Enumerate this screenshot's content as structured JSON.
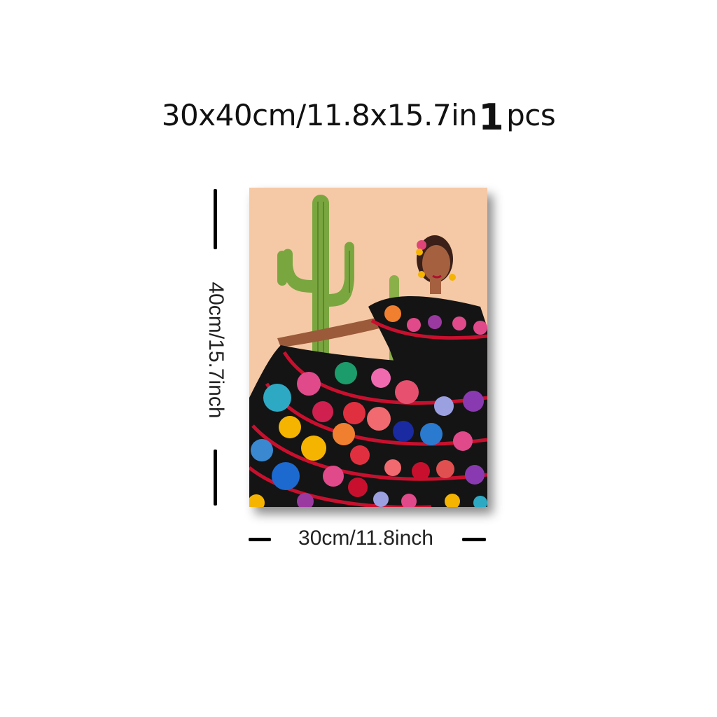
{
  "title": {
    "size_text": "30x40cm/11.8x15.7in",
    "quantity_number": "1",
    "quantity_unit": "pcs"
  },
  "dimensions": {
    "height_label": "40cm/15.7inch",
    "width_label": "30cm/11.8inch"
  },
  "artwork": {
    "subject": "woman in black floral dress with cacti",
    "background_color": "#f5c9a5",
    "dress_color": "#141414",
    "trim_color": "#c8102e",
    "cactus_color": "#7aa640"
  }
}
